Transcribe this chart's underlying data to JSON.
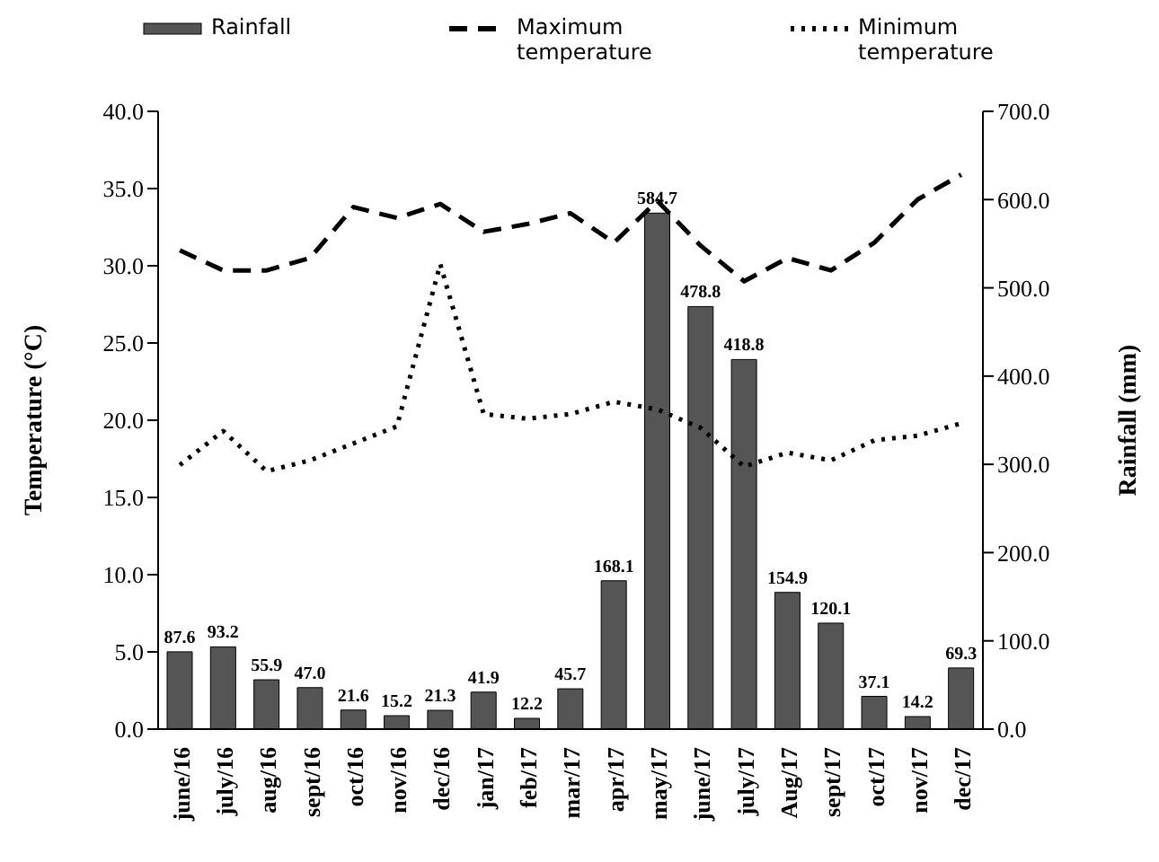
{
  "chart_data": {
    "type": "bar",
    "categories": [
      "june/16",
      "july/16",
      "aug/16",
      "sept/16",
      "oct/16",
      "nov/16",
      "dec/16",
      "jan/17",
      "feb/17",
      "mar/17",
      "apr/17",
      "may/17",
      "june/17",
      "july/17",
      "Aug/17",
      "sept/17",
      "oct/17",
      "nov/17",
      "dec/17"
    ],
    "series": [
      {
        "name": "Rainfall",
        "axis": "y2",
        "color": "#555555",
        "values": [
          87.6,
          93.2,
          55.9,
          47.0,
          21.6,
          15.2,
          21.3,
          41.9,
          12.2,
          45.7,
          168.1,
          584.7,
          478.8,
          418.8,
          154.9,
          120.1,
          37.1,
          14.2,
          69.3
        ],
        "value_labels": [
          "87.6",
          "93.2",
          "55.9",
          "47.0",
          "21.6",
          "15.2",
          "21.3",
          "41.9",
          "12.2",
          "45.7",
          "168.1",
          "584.7",
          "478.8",
          "418.8",
          "154.9",
          "120.1",
          "37.1",
          "14.2",
          "69.3"
        ]
      },
      {
        "name": "Maximum temperature",
        "type": "line",
        "line_style": "dashed",
        "color": "#000000",
        "values": [
          31.0,
          29.7,
          29.7,
          30.5,
          33.8,
          33.1,
          34.0,
          32.2,
          32.7,
          33.4,
          31.5,
          34.2,
          31.3,
          29.0,
          30.5,
          29.7,
          31.5,
          34.3,
          35.9
        ]
      },
      {
        "name": "Minimum temperature",
        "type": "line",
        "line_style": "dotted",
        "color": "#000000",
        "values": [
          17.1,
          19.3,
          16.7,
          17.4,
          18.5,
          19.6,
          30.1,
          20.4,
          20.1,
          20.4,
          21.2,
          20.7,
          19.5,
          17.0,
          17.9,
          17.4,
          18.7,
          19.0,
          19.8
        ]
      }
    ],
    "ylabel": "Temperature (°C)",
    "y2label": "Rainfall (mm)",
    "ylim": [
      0,
      40
    ],
    "yticks": [
      {
        "value": 0,
        "label": "0.0"
      },
      {
        "value": 5,
        "label": "5.0"
      },
      {
        "value": 10,
        "label": "10.0"
      },
      {
        "value": 15,
        "label": "15.0"
      },
      {
        "value": 20,
        "label": "20.0"
      },
      {
        "value": 25,
        "label": "25.0"
      },
      {
        "value": 30,
        "label": "30.0"
      },
      {
        "value": 35,
        "label": "35.0"
      },
      {
        "value": 40,
        "label": "40.0"
      }
    ],
    "y2lim": [
      0,
      700
    ],
    "y2ticks": [
      {
        "value": 0,
        "label": "0.0"
      },
      {
        "value": 100,
        "label": "100.0"
      },
      {
        "value": 200,
        "label": "200.0"
      },
      {
        "value": 300,
        "label": "300.0"
      },
      {
        "value": 400,
        "label": "400.0"
      },
      {
        "value": 500,
        "label": "500.0"
      },
      {
        "value": 600,
        "label": "600.0"
      },
      {
        "value": 700,
        "label": "700.0"
      }
    ],
    "legend": "top",
    "grid": false,
    "marker": "none"
  }
}
